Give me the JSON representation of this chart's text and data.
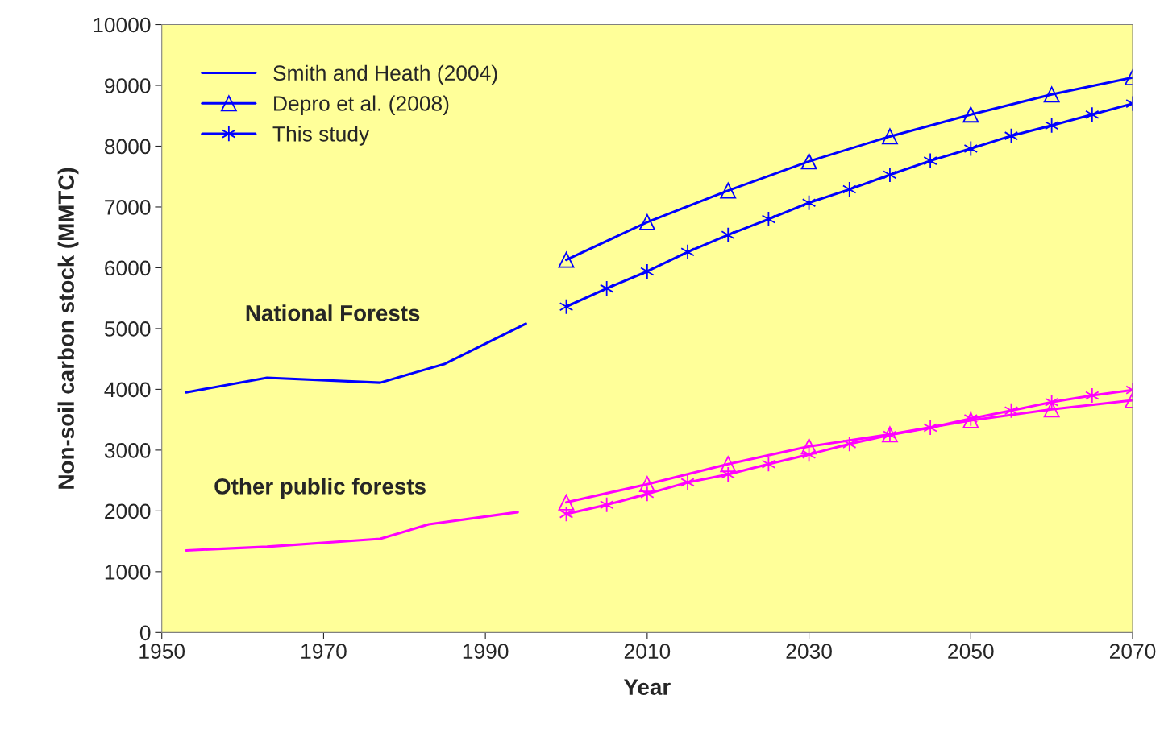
{
  "chart_data": {
    "type": "line",
    "xlabel": "Year",
    "ylabel": "Non-soil carbon stock (MMTC)",
    "xlim": [
      1950,
      2070
    ],
    "xticks": [
      1950,
      1970,
      1990,
      2010,
      2030,
      2050,
      2070
    ],
    "ylim": [
      0,
      10000
    ],
    "yticks": [
      0,
      1000,
      2000,
      3000,
      4000,
      5000,
      6000,
      7000,
      8000,
      9000,
      10000
    ],
    "grid": false,
    "legend": "top left",
    "series": [
      {
        "name": "Smith and Heath (2004)",
        "color": "#0000ff",
        "marker": "none",
        "x": [
          1953,
          1963,
          1977,
          1985,
          1995
        ],
        "values": [
          3950,
          4190,
          4110,
          4420,
          5080
        ]
      },
      {
        "name": "Depro et al. (2008)",
        "color": "#0000ff",
        "marker": "triangle",
        "x": [
          2000,
          2010,
          2020,
          2030,
          2040,
          2050,
          2060,
          2070
        ],
        "values": [
          6130,
          6750,
          7270,
          7750,
          8160,
          8520,
          8850,
          9130
        ]
      },
      {
        "name": "This study",
        "color": "#0000ff",
        "marker": "cross",
        "x": [
          2000,
          2005,
          2010,
          2015,
          2020,
          2025,
          2030,
          2035,
          2040,
          2045,
          2050,
          2055,
          2060,
          2065,
          2070
        ],
        "values": [
          5360,
          5660,
          5940,
          6260,
          6540,
          6800,
          7070,
          7290,
          7530,
          7760,
          7960,
          8170,
          8340,
          8520,
          8700
        ]
      },
      {
        "color": "#ff00ff",
        "marker": "none",
        "x": [
          1953,
          1963,
          1977,
          1983,
          1994
        ],
        "values": [
          1350,
          1410,
          1540,
          1780,
          1980
        ]
      },
      {
        "color": "#ff00ff",
        "marker": "triangle",
        "x": [
          2000,
          2010,
          2020,
          2030,
          2040,
          2050,
          2060,
          2070
        ],
        "values": [
          2140,
          2440,
          2770,
          3060,
          3260,
          3490,
          3670,
          3820
        ]
      },
      {
        "color": "#ff00ff",
        "marker": "cross",
        "x": [
          2000,
          2005,
          2010,
          2015,
          2020,
          2025,
          2030,
          2035,
          2040,
          2045,
          2050,
          2055,
          2060,
          2065,
          2070
        ],
        "values": [
          1950,
          2100,
          2280,
          2470,
          2600,
          2770,
          2930,
          3100,
          3250,
          3370,
          3520,
          3650,
          3790,
          3900,
          3990
        ]
      }
    ],
    "annotations": [
      "National Forests",
      "Other public forests"
    ]
  }
}
